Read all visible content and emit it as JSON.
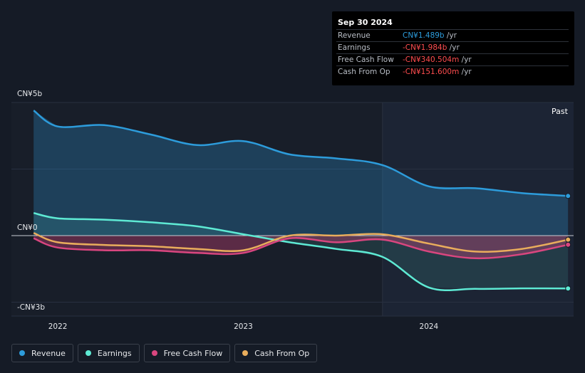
{
  "tooltip": {
    "date": "Sep 30 2024",
    "rows": [
      {
        "label": "Revenue",
        "value": "CN¥1.489b",
        "unit": " /yr",
        "color": "#2d9cdb"
      },
      {
        "label": "Earnings",
        "value": "-CN¥1.984b",
        "unit": " /yr",
        "color": "#ff4d4f"
      },
      {
        "label": "Free Cash Flow",
        "value": "-CN¥340.504m",
        "unit": " /yr",
        "color": "#ff4d4f"
      },
      {
        "label": "Cash From Op",
        "value": "-CN¥151.600m",
        "unit": " /yr",
        "color": "#ff4d4f"
      }
    ]
  },
  "past_label": "Past",
  "legend": [
    {
      "label": "Revenue",
      "color": "#2d9cdb"
    },
    {
      "label": "Earnings",
      "color": "#5eead4"
    },
    {
      "label": "Free Cash Flow",
      "color": "#d9467f"
    },
    {
      "label": "Cash From Op",
      "color": "#e9ad5c"
    }
  ],
  "chart_data": {
    "type": "line",
    "x_tick_labels": [
      "2022",
      "2023",
      "2024"
    ],
    "y_tick_labels": [
      "CN¥5b",
      "CN¥0",
      "-CN¥3b"
    ],
    "ylim": [
      -3,
      5
    ],
    "xlim": [
      2021.75,
      2024.78
    ],
    "past_region_start": 2023.75,
    "series": [
      {
        "name": "Revenue",
        "color": "#2d9cdb",
        "x": [
          2021.87,
          2022.0,
          2022.25,
          2022.5,
          2022.75,
          2023.0,
          2023.25,
          2023.5,
          2023.75,
          2024.0,
          2024.25,
          2024.5,
          2024.75
        ],
        "y": [
          4.7,
          4.1,
          4.15,
          3.8,
          3.4,
          3.55,
          3.05,
          2.9,
          2.65,
          1.85,
          1.78,
          1.6,
          1.489
        ]
      },
      {
        "name": "Earnings",
        "color": "#5eead4",
        "x": [
          2021.87,
          2022.0,
          2022.25,
          2022.5,
          2022.75,
          2023.0,
          2023.25,
          2023.5,
          2023.75,
          2024.0,
          2024.25,
          2024.5,
          2024.75
        ],
        "y": [
          0.85,
          0.65,
          0.6,
          0.5,
          0.35,
          0.05,
          -0.25,
          -0.5,
          -0.8,
          -1.95,
          -2.0,
          -1.98,
          -1.984
        ]
      },
      {
        "name": "Free Cash Flow",
        "color": "#d9467f",
        "x": [
          2021.87,
          2022.0,
          2022.25,
          2022.5,
          2022.75,
          2023.0,
          2023.25,
          2023.5,
          2023.75,
          2024.0,
          2024.25,
          2024.5,
          2024.75
        ],
        "y": [
          -0.1,
          -0.45,
          -0.55,
          -0.55,
          -0.65,
          -0.65,
          -0.1,
          -0.25,
          -0.15,
          -0.6,
          -0.85,
          -0.7,
          -0.341
        ]
      },
      {
        "name": "Cash From Op",
        "color": "#e9ad5c",
        "x": [
          2021.87,
          2022.0,
          2022.25,
          2022.5,
          2022.75,
          2023.0,
          2023.25,
          2023.5,
          2023.75,
          2024.0,
          2024.25,
          2024.5,
          2024.75
        ],
        "y": [
          0.1,
          -0.25,
          -0.35,
          -0.4,
          -0.5,
          -0.55,
          0.0,
          0.0,
          0.05,
          -0.3,
          -0.6,
          -0.5,
          -0.152
        ]
      }
    ]
  }
}
